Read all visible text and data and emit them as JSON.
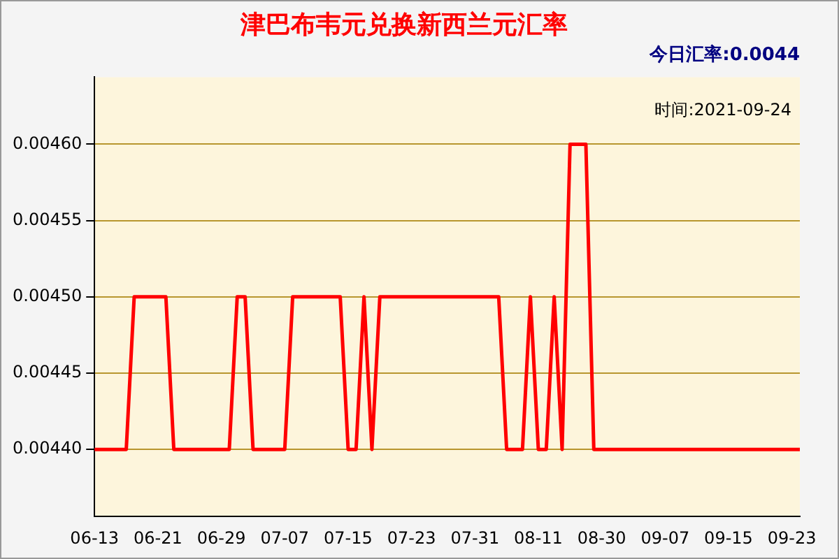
{
  "chart_data": {
    "type": "line",
    "title": "津巴布韦元兑换新西兰元汇率",
    "subtitle": "今日汇率:0.0044",
    "annotations": [
      "时间:2021-09-24"
    ],
    "categories": [
      "06-13",
      null,
      null,
      null,
      null,
      null,
      null,
      null,
      "06-21",
      null,
      null,
      null,
      null,
      null,
      null,
      null,
      "06-29",
      null,
      null,
      null,
      null,
      null,
      null,
      null,
      "07-07",
      null,
      null,
      null,
      null,
      null,
      null,
      null,
      "07-15",
      null,
      null,
      null,
      null,
      null,
      null,
      null,
      "07-23",
      null,
      null,
      null,
      null,
      null,
      null,
      null,
      "07-31",
      null,
      null,
      null,
      null,
      null,
      null,
      null,
      "08-11",
      null,
      null,
      null,
      null,
      null,
      null,
      null,
      "08-30",
      null,
      null,
      null,
      null,
      null,
      null,
      null,
      "09-07",
      null,
      null,
      null,
      null,
      null,
      null,
      null,
      "09-15",
      null,
      null,
      null,
      null,
      null,
      null,
      null,
      "09-23",
      null
    ],
    "series": [
      {
        "color": "#ff0000",
        "values": [
          0.0044,
          0.0044,
          0.0044,
          0.0044,
          0.0044,
          0.0045,
          0.0045,
          0.0045,
          0.0045,
          0.0045,
          0.0044,
          0.0044,
          0.0044,
          0.0044,
          0.0044,
          0.0044,
          0.0044,
          0.0044,
          0.0045,
          0.0045,
          0.0044,
          0.0044,
          0.0044,
          0.0044,
          0.0044,
          0.0045,
          0.0045,
          0.0045,
          0.0045,
          0.0045,
          0.0045,
          0.0045,
          0.0044,
          0.0044,
          0.0045,
          0.0044,
          0.0045,
          0.0045,
          0.0045,
          0.0045,
          0.0045,
          0.0045,
          0.0045,
          0.0045,
          0.0045,
          0.0045,
          0.0045,
          0.0045,
          0.0045,
          0.0045,
          0.0045,
          0.0045,
          0.0044,
          0.0044,
          0.0044,
          0.0045,
          0.0044,
          0.0044,
          0.0045,
          0.0044,
          0.0046,
          0.0046,
          0.0046,
          0.0044,
          0.0044,
          0.0044,
          0.0044,
          0.0044,
          0.0044,
          0.0044,
          0.0044,
          0.0044,
          0.0044,
          0.0044,
          0.0044,
          0.0044,
          0.0044,
          0.0044,
          0.0044,
          0.0044,
          0.0044,
          0.0044,
          0.0044,
          0.0044,
          0.0044,
          0.0044,
          0.0044,
          0.0044,
          0.0044,
          0.0044
        ]
      }
    ],
    "ylim": [
      0.004356,
      0.004644
    ],
    "yticks": [
      {
        "value": 0.0044,
        "label": "0.00440"
      },
      {
        "value": 0.00445,
        "label": "0.00445"
      },
      {
        "value": 0.0045,
        "label": "0.00450"
      },
      {
        "value": 0.00455,
        "label": "0.00455"
      },
      {
        "value": 0.0046,
        "label": "0.00460"
      }
    ],
    "grid": "y",
    "legend": false,
    "marker": "none",
    "line_style": "solid"
  }
}
